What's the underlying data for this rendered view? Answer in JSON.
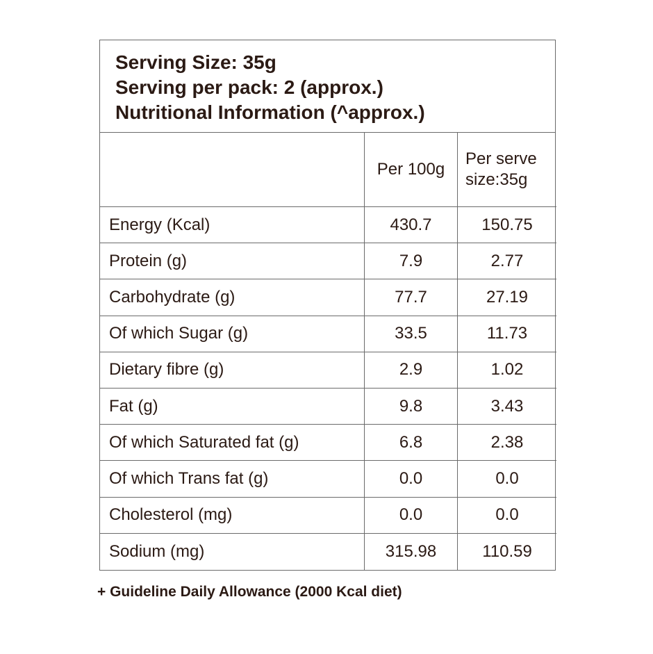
{
  "header": {
    "lines": [
      "Serving Size: 35g",
      "Serving per pack: 2 (approx.)",
      "Nutritional Information (^approx.)"
    ]
  },
  "table": {
    "columns": [
      "Per 100g",
      "Per serve size:35g"
    ],
    "rows": [
      [
        "Energy (Kcal)",
        "430.7",
        "150.75"
      ],
      [
        "Protein (g)",
        "7.9",
        "2.77"
      ],
      [
        "Carbohydrate (g)",
        "77.7",
        "27.19"
      ],
      [
        "Of which Sugar (g)",
        "33.5",
        "11.73"
      ],
      [
        "Dietary fibre (g)",
        "2.9",
        "1.02"
      ],
      [
        "Fat (g)",
        "9.8",
        "3.43"
      ],
      [
        "Of which Saturated fat (g)",
        "6.8",
        "2.38"
      ],
      [
        "Of which Trans fat (g)",
        "0.0",
        "0.0"
      ],
      [
        "Cholesterol (mg)",
        "0.0",
        "0.0"
      ],
      [
        "Sodium (mg)",
        "315.98",
        "110.59"
      ]
    ]
  },
  "footnote": "+ Guideline Daily Allowance (2000 Kcal diet)"
}
